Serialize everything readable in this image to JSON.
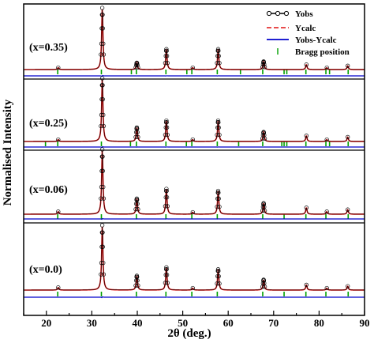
{
  "chart_data": {
    "type": "line",
    "xlabel": "2θ (deg.)",
    "ylabel": "Normalised Intensity",
    "xlim": [
      15,
      90
    ],
    "xticks": [
      20,
      30,
      40,
      50,
      60,
      70,
      80,
      90
    ],
    "yticks_shown": false,
    "grid": false,
    "legend": {
      "placement": "top-right",
      "entries": [
        {
          "name": "Yobs",
          "color": "#000000",
          "marker": "circle"
        },
        {
          "name": "Ycalc",
          "color": "#e01010",
          "style": "dashed"
        },
        {
          "name": "Yobs-Ycalc",
          "color": "#0000cc",
          "style": "solid"
        },
        {
          "name": "Bragg position",
          "color": "#00a000",
          "style": "tick"
        }
      ]
    },
    "panels": [
      {
        "label": "(x=0.35)",
        "peaks": [
          [
            22.6,
            0.03
          ],
          [
            32.3,
            1.0
          ],
          [
            39.9,
            0.11
          ],
          [
            46.4,
            0.33
          ],
          [
            52.2,
            0.03
          ],
          [
            57.8,
            0.33
          ],
          [
            67.8,
            0.13
          ],
          [
            77.2,
            0.08
          ],
          [
            81.7,
            0.03
          ],
          [
            86.3,
            0.06
          ]
        ],
        "bragg": [
          22.5,
          32.1,
          38.7,
          39.8,
          46.3,
          50.9,
          52.0,
          57.6,
          62.7,
          67.6,
          72.3,
          72.9,
          77.1,
          81.5,
          82.3,
          86.4
        ]
      },
      {
        "label": "(x=0.25)",
        "peaks": [
          [
            22.6,
            0.03
          ],
          [
            32.3,
            1.0
          ],
          [
            39.9,
            0.22
          ],
          [
            46.4,
            0.33
          ],
          [
            52.2,
            0.03
          ],
          [
            57.8,
            0.33
          ],
          [
            67.8,
            0.15
          ],
          [
            77.2,
            0.09
          ],
          [
            81.7,
            0.03
          ],
          [
            86.3,
            0.07
          ]
        ],
        "bragg": [
          19.8,
          22.5,
          32.1,
          38.5,
          39.8,
          46.3,
          50.8,
          52.0,
          57.6,
          62.3,
          67.6,
          71.8,
          72.3,
          72.9,
          77.1,
          81.5,
          82.3,
          86.4
        ]
      },
      {
        "label": "(x=0.06)",
        "peaks": [
          [
            22.6,
            0.04
          ],
          [
            32.3,
            1.0
          ],
          [
            39.9,
            0.24
          ],
          [
            46.4,
            0.39
          ],
          [
            52.2,
            0.03
          ],
          [
            57.8,
            0.36
          ],
          [
            67.8,
            0.17
          ],
          [
            77.2,
            0.1
          ],
          [
            81.7,
            0.04
          ],
          [
            86.3,
            0.07
          ]
        ],
        "bragg": [
          22.5,
          32.1,
          39.8,
          46.3,
          52.0,
          57.6,
          67.6,
          72.3,
          77.1,
          81.5,
          86.4
        ]
      },
      {
        "label": "(x=0.0)",
        "peaks": [
          [
            22.6,
            0.04
          ],
          [
            32.3,
            1.0
          ],
          [
            39.9,
            0.22
          ],
          [
            46.4,
            0.35
          ],
          [
            52.2,
            0.03
          ],
          [
            57.8,
            0.32
          ],
          [
            67.8,
            0.16
          ],
          [
            77.2,
            0.08
          ],
          [
            81.7,
            0.03
          ],
          [
            86.3,
            0.06
          ]
        ],
        "bragg": [
          22.5,
          32.1,
          39.8,
          46.3,
          52.0,
          57.6,
          67.6,
          72.3,
          77.1,
          81.5,
          86.4
        ]
      }
    ]
  }
}
